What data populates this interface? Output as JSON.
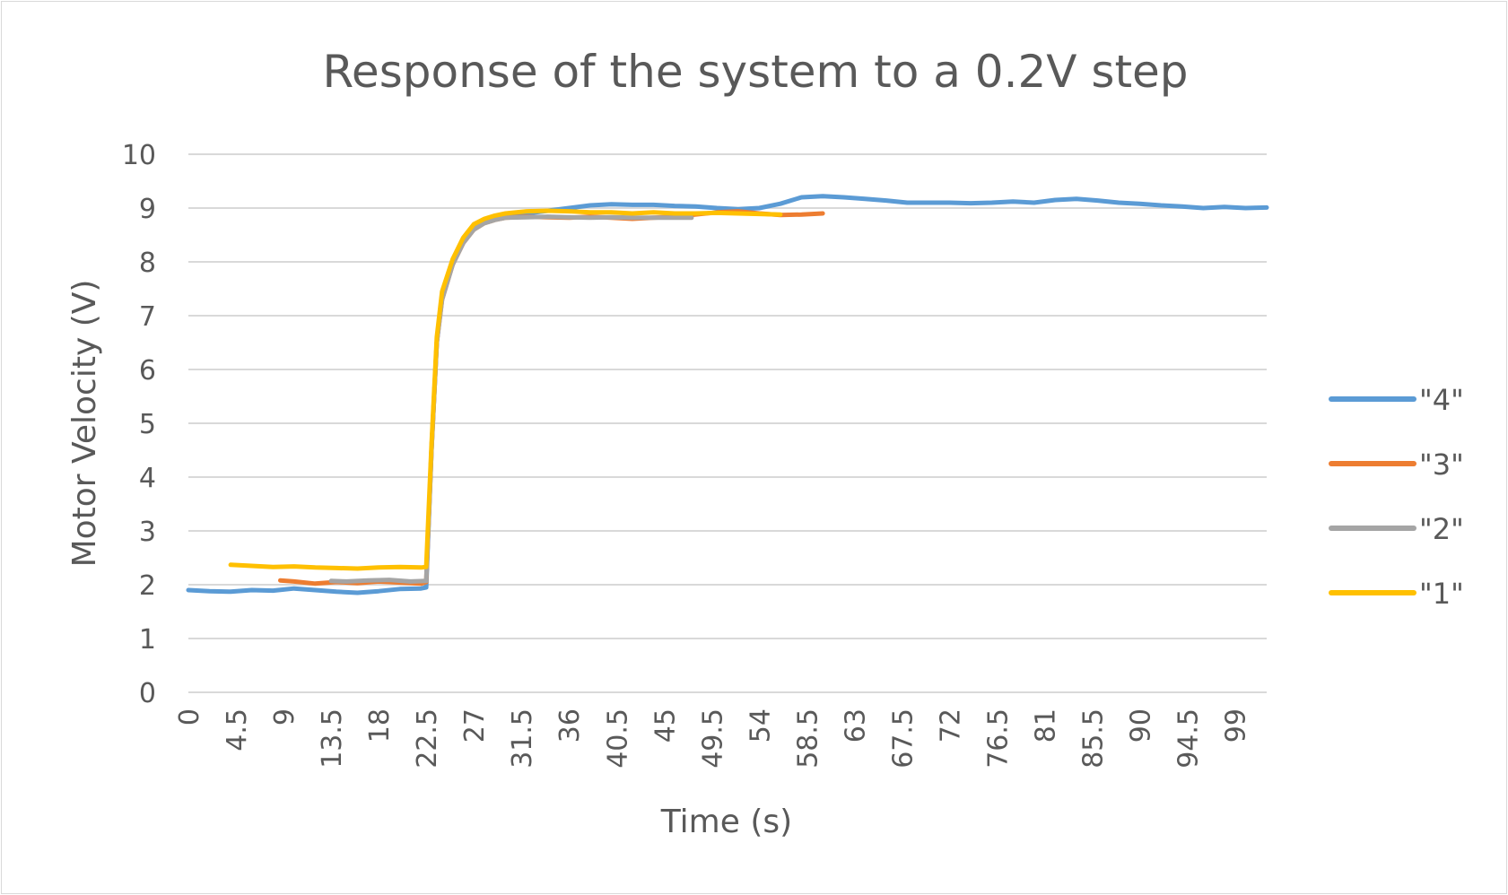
{
  "chart_data": {
    "type": "line",
    "title": "Response of the system to a 0.2V step",
    "xlabel": "Time (s)",
    "ylabel": "Motor Velocity (V)",
    "xlim": [
      0,
      102
    ],
    "ylim": [
      0,
      10
    ],
    "y_ticks": [
      "0",
      "1",
      "2",
      "3",
      "4",
      "5",
      "6",
      "7",
      "8",
      "9",
      "10"
    ],
    "x_ticks": [
      "0",
      "4.5",
      "9",
      "13.5",
      "18",
      "22.5",
      "27",
      "31.5",
      "36",
      "40.5",
      "45",
      "49.5",
      "54",
      "58.5",
      "63",
      "67.5",
      "72",
      "76.5",
      "81",
      "85.5",
      "90",
      "94.5",
      "99"
    ],
    "grid": true,
    "legend_position": "right",
    "series": [
      {
        "name": "\"4\"",
        "color": "#5b9bd5",
        "points": [
          [
            0,
            1.9
          ],
          [
            2,
            1.88
          ],
          [
            4,
            1.87
          ],
          [
            6,
            1.9
          ],
          [
            8,
            1.89
          ],
          [
            10,
            1.93
          ],
          [
            12,
            1.9
          ],
          [
            14,
            1.87
          ],
          [
            16,
            1.85
          ],
          [
            18,
            1.88
          ],
          [
            20,
            1.92
          ],
          [
            22,
            1.93
          ],
          [
            22.5,
            1.95
          ],
          [
            23.0,
            4.5
          ],
          [
            23.5,
            6.5
          ],
          [
            24,
            7.4
          ],
          [
            25,
            8.0
          ],
          [
            26,
            8.4
          ],
          [
            27,
            8.65
          ],
          [
            28,
            8.75
          ],
          [
            29,
            8.82
          ],
          [
            30,
            8.86
          ],
          [
            32,
            8.9
          ],
          [
            34,
            8.95
          ],
          [
            36,
            9.0
          ],
          [
            38,
            9.05
          ],
          [
            40,
            9.07
          ],
          [
            42,
            9.06
          ],
          [
            44,
            9.06
          ],
          [
            46,
            9.04
          ],
          [
            48,
            9.03
          ],
          [
            50,
            9.0
          ],
          [
            52,
            8.98
          ],
          [
            54,
            9.0
          ],
          [
            56,
            9.08
          ],
          [
            58,
            9.2
          ],
          [
            60,
            9.22
          ],
          [
            62,
            9.2
          ],
          [
            64,
            9.17
          ],
          [
            66,
            9.14
          ],
          [
            68,
            9.1
          ],
          [
            70,
            9.1
          ],
          [
            72,
            9.1
          ],
          [
            74,
            9.09
          ],
          [
            76,
            9.1
          ],
          [
            78,
            9.12
          ],
          [
            80,
            9.1
          ],
          [
            82,
            9.15
          ],
          [
            84,
            9.17
          ],
          [
            86,
            9.14
          ],
          [
            88,
            9.1
          ],
          [
            90,
            9.08
          ],
          [
            92,
            9.05
          ],
          [
            94,
            9.03
          ],
          [
            96,
            9.0
          ],
          [
            98,
            9.02
          ],
          [
            100,
            9.0
          ],
          [
            102,
            9.01
          ]
        ]
      },
      {
        "name": "\"3\"",
        "color": "#ed7d31",
        "points": [
          [
            8.7,
            2.08
          ],
          [
            10,
            2.06
          ],
          [
            12,
            2.02
          ],
          [
            14,
            2.05
          ],
          [
            16,
            2.03
          ],
          [
            18,
            2.06
          ],
          [
            20,
            2.04
          ],
          [
            22,
            2.02
          ],
          [
            22.5,
            2.05
          ],
          [
            23.0,
            4.5
          ],
          [
            23.5,
            6.5
          ],
          [
            24,
            7.3
          ],
          [
            25,
            7.95
          ],
          [
            26,
            8.35
          ],
          [
            27,
            8.6
          ],
          [
            28,
            8.72
          ],
          [
            29,
            8.78
          ],
          [
            30,
            8.82
          ],
          [
            32,
            8.84
          ],
          [
            34,
            8.83
          ],
          [
            36,
            8.82
          ],
          [
            38,
            8.84
          ],
          [
            40,
            8.82
          ],
          [
            42,
            8.8
          ],
          [
            44,
            8.82
          ],
          [
            46,
            8.84
          ],
          [
            48,
            8.88
          ],
          [
            50,
            8.92
          ],
          [
            52,
            8.94
          ],
          [
            54,
            8.9
          ],
          [
            56,
            8.87
          ],
          [
            58,
            8.88
          ],
          [
            60,
            8.9
          ]
        ]
      },
      {
        "name": "\"2\"",
        "color": "#a5a5a5",
        "points": [
          [
            13.5,
            2.07
          ],
          [
            15,
            2.06
          ],
          [
            17,
            2.08
          ],
          [
            19,
            2.09
          ],
          [
            21,
            2.06
          ],
          [
            22.5,
            2.07
          ],
          [
            23.0,
            4.5
          ],
          [
            23.5,
            6.5
          ],
          [
            24,
            7.3
          ],
          [
            25,
            7.95
          ],
          [
            26,
            8.35
          ],
          [
            27,
            8.6
          ],
          [
            28,
            8.72
          ],
          [
            29,
            8.78
          ],
          [
            30,
            8.82
          ],
          [
            32,
            8.83
          ],
          [
            34,
            8.84
          ],
          [
            36,
            8.83
          ],
          [
            38,
            8.82
          ],
          [
            40,
            8.83
          ],
          [
            42,
            8.82
          ],
          [
            44,
            8.82
          ],
          [
            46,
            8.82
          ],
          [
            47.6,
            8.82
          ]
        ]
      },
      {
        "name": "\"1\"",
        "color": "#ffc000",
        "points": [
          [
            4,
            2.37
          ],
          [
            6,
            2.35
          ],
          [
            8,
            2.33
          ],
          [
            10,
            2.34
          ],
          [
            12,
            2.32
          ],
          [
            14,
            2.31
          ],
          [
            16,
            2.3
          ],
          [
            18,
            2.32
          ],
          [
            20,
            2.33
          ],
          [
            22,
            2.32
          ],
          [
            22.5,
            2.33
          ],
          [
            23.0,
            4.6
          ],
          [
            23.5,
            6.6
          ],
          [
            24,
            7.45
          ],
          [
            25,
            8.05
          ],
          [
            26,
            8.45
          ],
          [
            27,
            8.7
          ],
          [
            28,
            8.8
          ],
          [
            29,
            8.86
          ],
          [
            30,
            8.9
          ],
          [
            32,
            8.94
          ],
          [
            34,
            8.95
          ],
          [
            36,
            8.94
          ],
          [
            38,
            8.92
          ],
          [
            40,
            8.92
          ],
          [
            42,
            8.9
          ],
          [
            44,
            8.92
          ],
          [
            46,
            8.9
          ],
          [
            48,
            8.9
          ],
          [
            50,
            8.91
          ],
          [
            52,
            8.9
          ],
          [
            54,
            8.89
          ],
          [
            56,
            8.88
          ]
        ]
      }
    ]
  }
}
